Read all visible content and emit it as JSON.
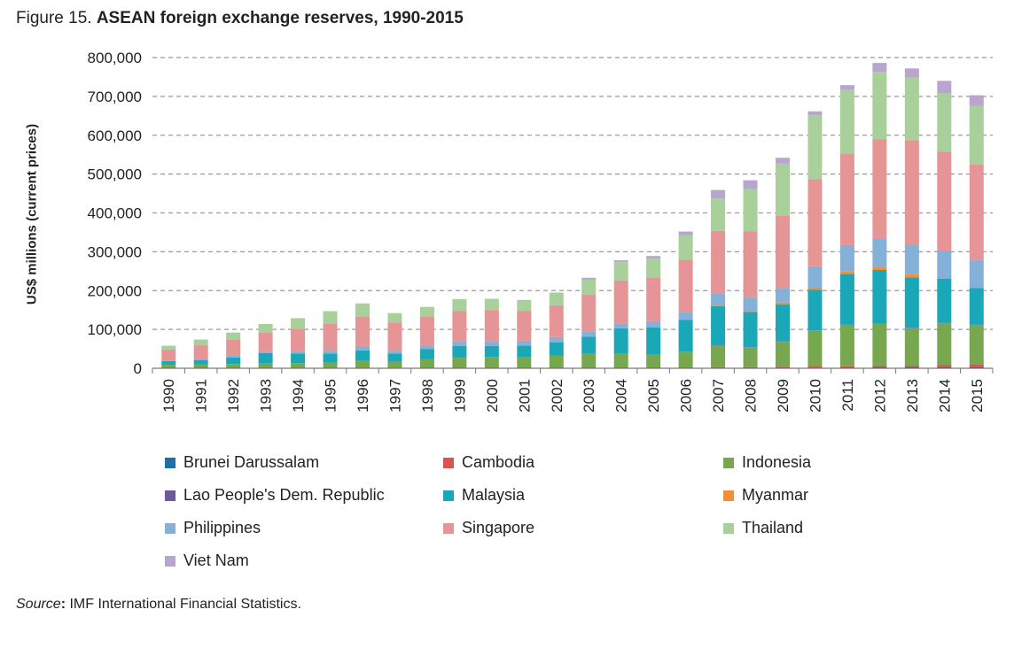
{
  "figure": {
    "label": "Figure 15.",
    "title": "ASEAN foreign exchange reserves, 1990-2015"
  },
  "source": {
    "label": "Source",
    "colon": ":",
    "text": " IMF International Financial Statistics."
  },
  "chart_data": {
    "type": "bar",
    "stacked": true,
    "ylabel": "US$ millions (current prices)",
    "xlabel": "",
    "ylim": [
      0,
      800000
    ],
    "yticks": [
      0,
      100000,
      200000,
      300000,
      400000,
      500000,
      600000,
      700000,
      800000
    ],
    "ytick_labels": [
      "0",
      "100,000",
      "200,000",
      "300,000",
      "400,000",
      "500,000",
      "600,000",
      "700,000",
      "800,000"
    ],
    "grid": "horizontal dashed",
    "legend_position": "bottom",
    "categories": [
      "1990",
      "1991",
      "1992",
      "1993",
      "1994",
      "1995",
      "1996",
      "1997",
      "1998",
      "1999",
      "2000",
      "2001",
      "2002",
      "2003",
      "2004",
      "2005",
      "2006",
      "2007",
      "2008",
      "2009",
      "2010",
      "2011",
      "2012",
      "2013",
      "2014",
      "2015"
    ],
    "series": [
      {
        "name": "Brunei Darussalam",
        "color": "#1f6fa8",
        "values": [
          1000,
          1000,
          1000,
          1000,
          1000,
          1000,
          1000,
          1000,
          1000,
          1000,
          1000,
          1000,
          1000,
          1000,
          1000,
          1000,
          1000,
          1000,
          1000,
          1000,
          1500,
          2000,
          3000,
          3000,
          3000,
          3000
        ]
      },
      {
        "name": "Cambodia",
        "color": "#d9534f",
        "values": [
          0,
          0,
          0,
          0,
          0,
          0,
          0,
          0,
          0,
          0,
          0,
          0,
          1000,
          1000,
          1000,
          1000,
          1000,
          2000,
          2000,
          3000,
          3000,
          3000,
          4000,
          4000,
          5000,
          7000
        ]
      },
      {
        "name": "Indonesia",
        "color": "#77a850",
        "values": [
          8000,
          9000,
          10000,
          11000,
          12000,
          13000,
          18000,
          16000,
          22000,
          26000,
          28000,
          27000,
          31000,
          35000,
          35000,
          33000,
          41000,
          55000,
          50000,
          64000,
          92000,
          106000,
          108000,
          96000,
          108000,
          101000
        ]
      },
      {
        "name": "Lao People's Dem. Republic",
        "color": "#6e5a9a",
        "values": [
          0,
          0,
          0,
          0,
          0,
          0,
          0,
          0,
          0,
          0,
          0,
          0,
          0,
          0,
          0,
          0,
          0,
          1000,
          1000,
          1000,
          1000,
          1000,
          1000,
          1000,
          1000,
          1000
        ]
      },
      {
        "name": "Malaysia",
        "color": "#1aa7b8",
        "values": [
          10000,
          11000,
          17000,
          27000,
          25000,
          24000,
          27000,
          21000,
          26000,
          30000,
          28000,
          30000,
          34000,
          44000,
          66000,
          70000,
          82000,
          101000,
          91000,
          95000,
          105000,
          131000,
          137000,
          130000,
          114000,
          95000
        ]
      },
      {
        "name": "Myanmar",
        "color": "#f0903a",
        "values": [
          0,
          0,
          0,
          0,
          0,
          0,
          0,
          0,
          0,
          0,
          0,
          0,
          0,
          0,
          0,
          0,
          0,
          3000,
          3000,
          5000,
          5000,
          7000,
          7000,
          8000,
          0,
          0
        ]
      },
      {
        "name": "Philippines",
        "color": "#85b0d8",
        "values": [
          1000,
          3000,
          5000,
          5000,
          6000,
          7000,
          10000,
          7000,
          9000,
          13000,
          13000,
          13000,
          13000,
          14000,
          13000,
          16000,
          20000,
          30000,
          34000,
          38000,
          55000,
          67000,
          74000,
          76000,
          72000,
          73000
        ]
      },
      {
        "name": "Singapore",
        "color": "#e59595",
        "values": [
          28000,
          35000,
          40000,
          48000,
          58000,
          69000,
          77000,
          73000,
          75000,
          77000,
          80000,
          76000,
          82000,
          95000,
          110000,
          113000,
          134000,
          161000,
          171000,
          185000,
          224000,
          236000,
          256000,
          269000,
          255000,
          245000
        ]
      },
      {
        "name": "Thailand",
        "color": "#a9cf9b",
        "values": [
          10000,
          15000,
          19000,
          22000,
          27000,
          33000,
          34000,
          24000,
          25000,
          31000,
          29000,
          29000,
          33000,
          38000,
          47000,
          48000,
          64000,
          83000,
          108000,
          135000,
          165000,
          164000,
          173000,
          161000,
          149000,
          150000
        ]
      },
      {
        "name": "Viet Nam",
        "color": "#b9a6cf",
        "values": [
          0,
          0,
          0,
          0,
          0,
          0,
          0,
          0,
          0,
          0,
          0,
          0,
          0,
          5000,
          5000,
          7000,
          9000,
          22000,
          23000,
          15000,
          10000,
          12000,
          23000,
          24000,
          33000,
          28000
        ]
      }
    ]
  }
}
